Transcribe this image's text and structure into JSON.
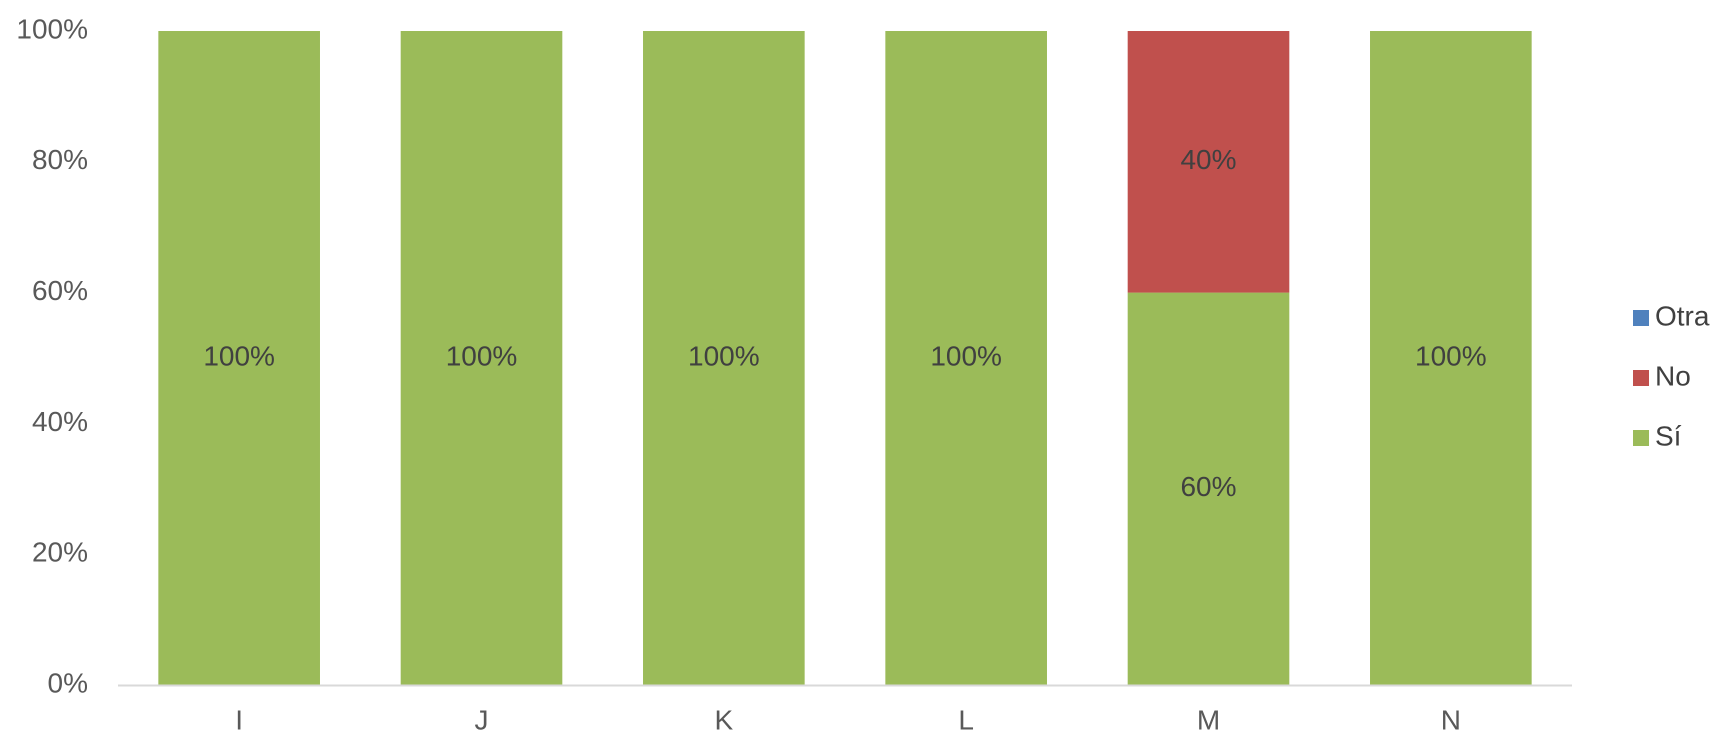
{
  "chart_data": {
    "type": "bar",
    "stacked": true,
    "percent_stacked": true,
    "categories": [
      "I",
      "J",
      "K",
      "L",
      "M",
      "N"
    ],
    "series": [
      {
        "name": "Sí",
        "color": "#9BBB59",
        "values": [
          100,
          100,
          100,
          100,
          60,
          100
        ],
        "labels": [
          "100%",
          "100%",
          "100%",
          "100%",
          "60%",
          "100%"
        ]
      },
      {
        "name": "No",
        "color": "#C0504D",
        "values": [
          0,
          0,
          0,
          0,
          40,
          0
        ],
        "labels": [
          "",
          "",
          "",
          "",
          "40%",
          ""
        ]
      },
      {
        "name": "Otra",
        "color": "#4F81BD",
        "values": [
          0,
          0,
          0,
          0,
          0,
          0
        ],
        "labels": [
          "",
          "",
          "",
          "",
          "",
          ""
        ]
      }
    ],
    "ylim": [
      0,
      100
    ],
    "yticks": [
      "0%",
      "20%",
      "40%",
      "60%",
      "80%",
      "100%"
    ],
    "ytick_values": [
      0,
      20,
      40,
      60,
      80,
      100
    ],
    "legend": {
      "placement": "right",
      "order": [
        "Otra",
        "No",
        "Sí"
      ]
    },
    "grid": false,
    "axis_color": "#D9D9D9"
  }
}
